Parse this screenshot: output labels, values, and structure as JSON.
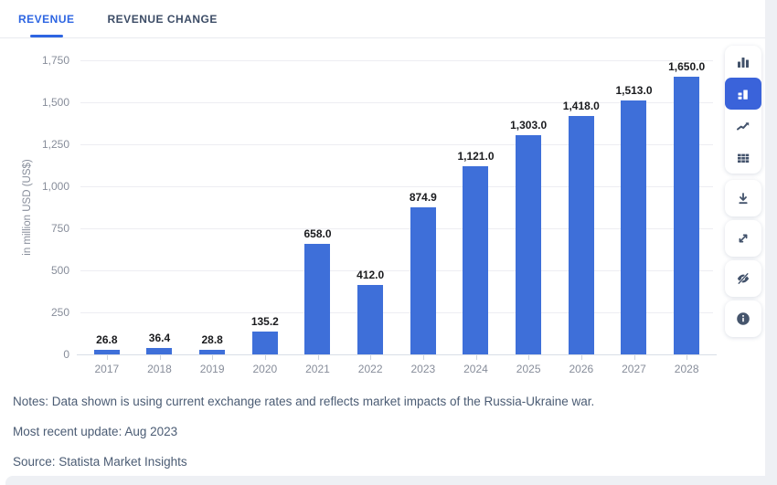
{
  "tabs": [
    {
      "label": "REVENUE",
      "active": true
    },
    {
      "label": "REVENUE CHANGE",
      "active": false
    }
  ],
  "chart_data": {
    "type": "bar",
    "title": "",
    "categories": [
      "2017",
      "2018",
      "2019",
      "2020",
      "2021",
      "2022",
      "2023",
      "2024",
      "2025",
      "2026",
      "2027",
      "2028"
    ],
    "values": [
      26.8,
      36.4,
      28.8,
      135.2,
      658.0,
      412.0,
      874.9,
      1121.0,
      1303.0,
      1418.0,
      1513.0,
      1650.0
    ],
    "value_labels": [
      "26.8",
      "36.4",
      "28.8",
      "135.2",
      "658.0",
      "412.0",
      "874.9",
      "1,121.0",
      "1,303.0",
      "1,418.0",
      "1,513.0",
      "1,650.0"
    ],
    "xlabel": "",
    "ylabel": "in million USD (US$)",
    "ylim": [
      0,
      1750
    ],
    "yticks": [
      0,
      250,
      500,
      750,
      1000,
      1250,
      1500,
      1750
    ],
    "grid": true,
    "legend": false,
    "bar_color": "#3E6FD9"
  },
  "toolbar": {
    "chart_types": [
      {
        "icon": "column-chart-icon",
        "selected": false
      },
      {
        "icon": "labeled-column-chart-icon",
        "selected": true
      },
      {
        "icon": "line-chart-icon",
        "selected": false
      },
      {
        "icon": "table-view-icon",
        "selected": false
      }
    ],
    "actions": [
      {
        "icon": "download-icon"
      },
      {
        "icon": "fullscreen-icon"
      },
      {
        "icon": "hide-values-icon"
      },
      {
        "icon": "info-icon"
      }
    ]
  },
  "footer": {
    "notes": "Notes: Data shown is using current exchange rates and reflects market impacts of the Russia-Ukraine war.",
    "updated": "Most recent update: Aug 2023",
    "source": "Source: Statista Market Insights"
  },
  "colors": {
    "accent": "#2D65E2",
    "bar": "#3E6FD9",
    "selected_tool": "#3A63DA",
    "note_text": "#4B5C74"
  }
}
